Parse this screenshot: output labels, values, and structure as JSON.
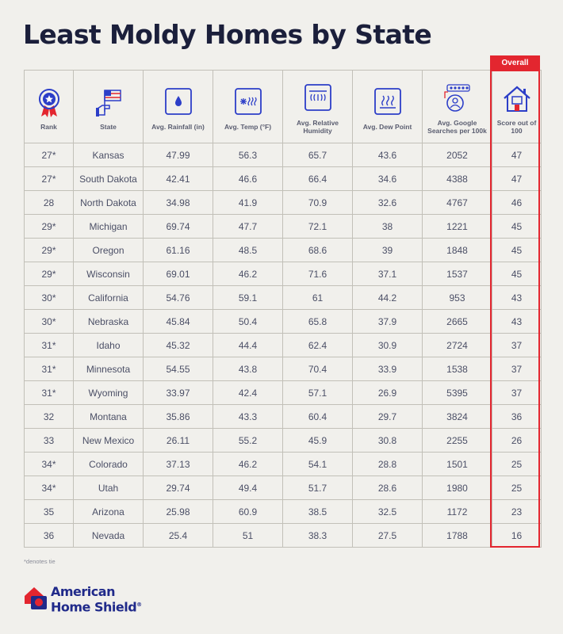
{
  "title": "Least Moldy Homes by State",
  "overall_label": "Overall",
  "columns": [
    {
      "label": "Rank",
      "icon": "ribbon-award-icon"
    },
    {
      "label": "State",
      "icon": "hand-flag-icon"
    },
    {
      "label": "Avg. Rainfall (in)",
      "icon": "raindrop-icon"
    },
    {
      "label": "Avg. Temp (°F)",
      "icon": "temperature-icon"
    },
    {
      "label": "Avg. Relative Humidity",
      "icon": "humidity-icon"
    },
    {
      "label": "Avg. Dew Point",
      "icon": "dew-point-icon"
    },
    {
      "label": "Avg. Google Searches per 100k",
      "icon": "search-reviews-icon"
    },
    {
      "label": "Score out of 100",
      "icon": "house-icon"
    }
  ],
  "rows": [
    [
      "27*",
      "Kansas",
      "47.99",
      "56.3",
      "65.7",
      "43.6",
      "2052",
      "47"
    ],
    [
      "27*",
      "South Dakota",
      "42.41",
      "46.6",
      "66.4",
      "34.6",
      "4388",
      "47"
    ],
    [
      "28",
      "North Dakota",
      "34.98",
      "41.9",
      "70.9",
      "32.6",
      "4767",
      "46"
    ],
    [
      "29*",
      "Michigan",
      "69.74",
      "47.7",
      "72.1",
      "38",
      "1221",
      "45"
    ],
    [
      "29*",
      "Oregon",
      "61.16",
      "48.5",
      "68.6",
      "39",
      "1848",
      "45"
    ],
    [
      "29*",
      "Wisconsin",
      "69.01",
      "46.2",
      "71.6",
      "37.1",
      "1537",
      "45"
    ],
    [
      "30*",
      "California",
      "54.76",
      "59.1",
      "61",
      "44.2",
      "953",
      "43"
    ],
    [
      "30*",
      "Nebraska",
      "45.84",
      "50.4",
      "65.8",
      "37.9",
      "2665",
      "43"
    ],
    [
      "31*",
      "Idaho",
      "45.32",
      "44.4",
      "62.4",
      "30.9",
      "2724",
      "37"
    ],
    [
      "31*",
      "Minnesota",
      "54.55",
      "43.8",
      "70.4",
      "33.9",
      "1538",
      "37"
    ],
    [
      "31*",
      "Wyoming",
      "33.97",
      "42.4",
      "57.1",
      "26.9",
      "5395",
      "37"
    ],
    [
      "32",
      "Montana",
      "35.86",
      "43.3",
      "60.4",
      "29.7",
      "3824",
      "36"
    ],
    [
      "33",
      "New Mexico",
      "26.11",
      "55.2",
      "45.9",
      "30.8",
      "2255",
      "26"
    ],
    [
      "34*",
      "Colorado",
      "37.13",
      "46.2",
      "54.1",
      "28.8",
      "1501",
      "25"
    ],
    [
      "34*",
      "Utah",
      "29.74",
      "49.4",
      "51.7",
      "28.6",
      "1980",
      "25"
    ],
    [
      "35",
      "Arizona",
      "25.98",
      "60.9",
      "38.5",
      "32.5",
      "1172",
      "23"
    ],
    [
      "36",
      "Nevada",
      "25.4",
      "51",
      "38.3",
      "27.5",
      "1788",
      "16"
    ]
  ],
  "footnote": "*denotes tie",
  "brand": {
    "line1": "American",
    "line2": "Home Shield",
    "mark": "®"
  },
  "colors": {
    "accent": "#e3262f",
    "brand": "#202a8a",
    "icon": "#2c3ec8",
    "background": "#f1f0ec"
  }
}
